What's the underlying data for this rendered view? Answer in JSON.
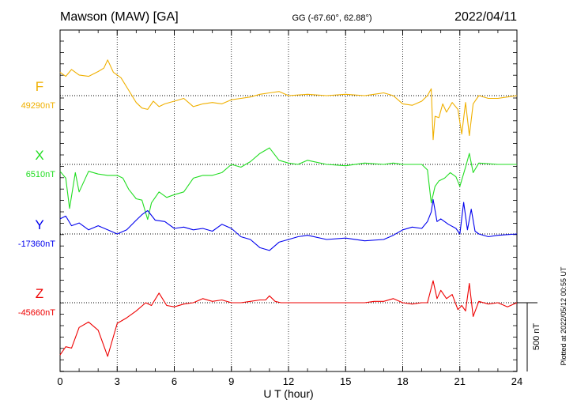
{
  "header": {
    "station": "Mawson (MAW)  [GA]",
    "coords": "GG (-67.60°,  62.88°)",
    "date": "2022/04/11"
  },
  "footer": {
    "xlabel": "U T (hour)",
    "scale_label": "500 nT",
    "plotted_note": "Plotted at 2022/05/12 00:55 UT"
  },
  "chart_data": {
    "type": "line",
    "title": "Mawson (MAW)  [GA]",
    "xlabel": "U T (hour)",
    "ylabel": "",
    "xlim": [
      0,
      24
    ],
    "x_ticks": [
      "0",
      "3",
      "6",
      "9",
      "12",
      "15",
      "18",
      "21",
      "24"
    ],
    "grid": "dotted vertical lines every 3 hours",
    "scale_bar_nT": 500,
    "series": [
      {
        "name": "F",
        "baseline_label": "49290nT",
        "baseline_nT": 49290,
        "color": "#f0b000",
        "x": [
          0,
          0.3,
          0.6,
          1.0,
          1.5,
          2.0,
          2.3,
          2.5,
          2.8,
          3.2,
          3.6,
          4.0,
          4.3,
          4.6,
          4.9,
          5.2,
          5.5,
          6.0,
          6.5,
          7.0,
          7.5,
          8.0,
          8.5,
          9.0,
          9.5,
          10.0,
          10.5,
          11.0,
          11.5,
          12.0,
          13.0,
          14.0,
          15.0,
          16.0,
          16.5,
          17.0,
          17.5,
          18.0,
          18.5,
          19.0,
          19.3,
          19.5,
          19.6,
          19.7,
          19.9,
          20.1,
          20.3,
          20.6,
          20.9,
          21.1,
          21.3,
          21.5,
          21.7,
          22.0,
          22.5,
          23.0,
          23.5,
          24.0
        ],
        "y": [
          170,
          140,
          190,
          150,
          140,
          175,
          200,
          260,
          170,
          130,
          40,
          -50,
          -90,
          -100,
          -40,
          -80,
          -60,
          -40,
          -20,
          -80,
          -60,
          -50,
          -60,
          -30,
          -20,
          -10,
          10,
          20,
          30,
          0,
          10,
          0,
          10,
          0,
          10,
          20,
          0,
          -60,
          -70,
          -40,
          0,
          50,
          -320,
          -150,
          -160,
          -60,
          -120,
          -50,
          -100,
          -280,
          -50,
          -290,
          -60,
          0,
          -20,
          -20,
          -10,
          0
        ]
      },
      {
        "name": "X",
        "baseline_label": "6510nT",
        "baseline_nT": 6510,
        "color": "#22dd22",
        "x": [
          0,
          0.3,
          0.5,
          0.8,
          1.0,
          1.5,
          2.0,
          2.5,
          3.0,
          3.3,
          3.6,
          4.0,
          4.3,
          4.6,
          4.8,
          5.2,
          5.6,
          6.0,
          6.5,
          7.0,
          7.5,
          8.0,
          8.5,
          9.0,
          9.5,
          10.0,
          10.5,
          11.0,
          11.5,
          12.0,
          12.5,
          13.0,
          14.0,
          15.0,
          16.0,
          17.0,
          17.5,
          18.0,
          18.5,
          19.0,
          19.3,
          19.5,
          19.7,
          19.9,
          20.2,
          20.5,
          20.8,
          21.0,
          21.3,
          21.5,
          21.7,
          22.0,
          23.0,
          24.0
        ],
        "y": [
          -50,
          -100,
          -320,
          -60,
          -200,
          -50,
          -70,
          -80,
          -80,
          -100,
          -180,
          -250,
          -260,
          -400,
          -280,
          -200,
          -240,
          -220,
          -200,
          -100,
          -80,
          -80,
          -60,
          0,
          -20,
          20,
          80,
          120,
          30,
          10,
          0,
          30,
          0,
          -10,
          10,
          0,
          10,
          0,
          0,
          0,
          -40,
          -280,
          -160,
          -120,
          -100,
          -60,
          -90,
          -160,
          -20,
          80,
          -60,
          10,
          0,
          0
        ]
      },
      {
        "name": "Y",
        "baseline_label": "-17360nT",
        "baseline_nT": -17360,
        "color": "#0000ee",
        "x": [
          0,
          0.3,
          0.6,
          1.0,
          1.5,
          2.0,
          2.5,
          3.0,
          3.5,
          4.0,
          4.3,
          4.6,
          5.0,
          5.5,
          6.0,
          6.5,
          7.0,
          7.5,
          8.0,
          8.5,
          9.0,
          9.5,
          10.0,
          10.5,
          11.0,
          11.5,
          12.0,
          12.5,
          13.0,
          14.0,
          15.0,
          16.0,
          17.0,
          17.5,
          18.0,
          18.5,
          19.0,
          19.3,
          19.5,
          19.6,
          19.8,
          20.0,
          20.4,
          20.8,
          21.0,
          21.2,
          21.4,
          21.6,
          21.8,
          22.0,
          22.5,
          23.0,
          24.0
        ],
        "y": [
          110,
          130,
          60,
          80,
          30,
          60,
          30,
          0,
          30,
          100,
          140,
          170,
          100,
          90,
          40,
          50,
          30,
          40,
          20,
          70,
          40,
          -20,
          -40,
          -100,
          -120,
          -60,
          -40,
          -20,
          -10,
          -40,
          -30,
          -50,
          -40,
          -10,
          30,
          50,
          40,
          90,
          160,
          250,
          90,
          110,
          70,
          40,
          0,
          230,
          30,
          180,
          20,
          0,
          -20,
          -10,
          0
        ]
      },
      {
        "name": "Z",
        "baseline_label": "-45660nT",
        "baseline_nT": -45660,
        "color": "#ee0000",
        "x": [
          0,
          0.3,
          0.6,
          1.0,
          1.5,
          2.0,
          2.5,
          3.0,
          3.5,
          4.0,
          4.5,
          4.8,
          5.2,
          5.6,
          6.0,
          6.5,
          7.0,
          7.5,
          8.0,
          8.5,
          9.0,
          9.5,
          10.0,
          10.5,
          10.8,
          11.0,
          11.3,
          11.6,
          12.0,
          13.0,
          14.0,
          15.0,
          16.0,
          16.5,
          17.0,
          17.5,
          18.0,
          18.5,
          19.0,
          19.3,
          19.6,
          19.8,
          20.0,
          20.3,
          20.6,
          20.9,
          21.1,
          21.3,
          21.5,
          21.7,
          22.0,
          22.5,
          23.0,
          23.5,
          24.0
        ],
        "y": [
          -380,
          -320,
          -330,
          -180,
          -140,
          -200,
          -390,
          -150,
          -110,
          -60,
          0,
          -20,
          70,
          -20,
          -30,
          -10,
          0,
          30,
          10,
          20,
          0,
          0,
          10,
          20,
          20,
          50,
          10,
          0,
          0,
          0,
          0,
          0,
          0,
          10,
          10,
          30,
          0,
          -10,
          0,
          0,
          160,
          30,
          90,
          30,
          60,
          -50,
          -20,
          -60,
          140,
          -100,
          10,
          -10,
          0,
          -30,
          0
        ]
      }
    ]
  }
}
